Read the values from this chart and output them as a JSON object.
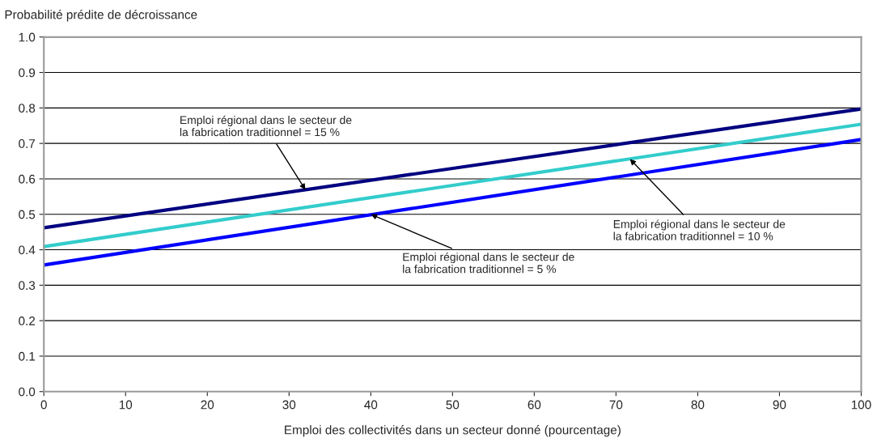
{
  "chart_data": {
    "type": "line",
    "ylabel": "Probabilité prédite de décroissance",
    "xlabel": "Emploi des collectivités dans un secteur donné (pourcentage)",
    "x": [
      0,
      100
    ],
    "series": [
      {
        "color": "#000080",
        "values": [
          0.462,
          0.797
        ]
      },
      {
        "color": "#33cccc",
        "values": [
          0.409,
          0.754
        ]
      },
      {
        "color": "#0000ff",
        "values": [
          0.357,
          0.711
        ]
      }
    ],
    "xlim": [
      0,
      100
    ],
    "xticks": [
      0,
      10,
      20,
      30,
      40,
      50,
      60,
      70,
      80,
      90,
      100
    ],
    "ylim": [
      0.0,
      1.0
    ],
    "yticks": [
      {
        "value": 0.0,
        "label": "0.0"
      },
      {
        "value": 0.1,
        "label": "0.1"
      },
      {
        "value": 0.2,
        "label": "0.2"
      },
      {
        "value": 0.3,
        "label": "0.3"
      },
      {
        "value": 0.4,
        "label": "0.4"
      },
      {
        "value": 0.5,
        "label": "0.5"
      },
      {
        "value": 0.6,
        "label": "0.6"
      },
      {
        "value": 0.7,
        "label": "0.7"
      },
      {
        "value": 0.8,
        "label": "0.8"
      },
      {
        "value": 0.9,
        "label": "0.9"
      },
      {
        "value": 1.0,
        "label": "1.0"
      }
    ],
    "grid": "y",
    "legend": false,
    "marker": "none",
    "line_style": "solid",
    "annotations": [
      {
        "text": "Emploi régional dans le secteur de\nla fabrication traditionnel = 15 %",
        "x": 32,
        "y": 0.569
      },
      {
        "text": "Emploi régional dans le secteur de\nla fabrication traditionnel = 10 %",
        "x": 71.7,
        "y": 0.656
      },
      {
        "text": "Emploi régional dans le secteur de\nla fabrication traditionnel = 5 %",
        "x": 40,
        "y": 0.5
      }
    ]
  }
}
